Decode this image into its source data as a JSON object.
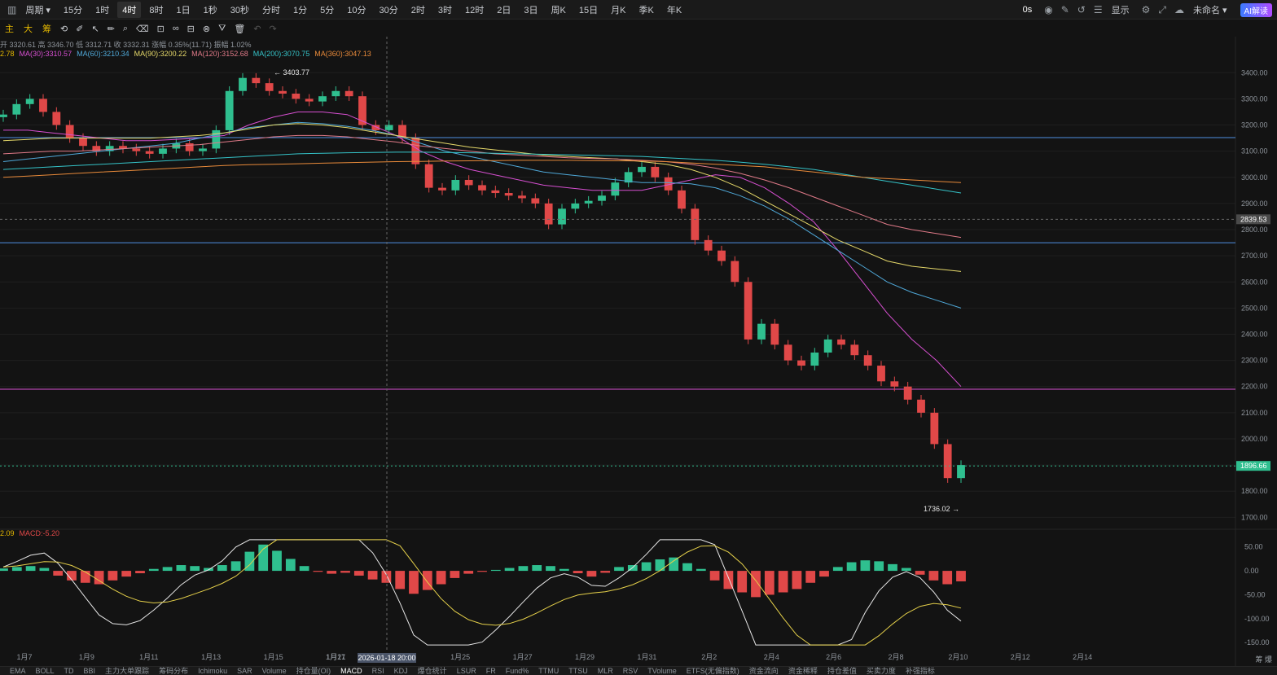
{
  "toolbar": {
    "chart_type_icon": "bar-chart-icon",
    "period_label": "周期",
    "intervals": [
      "15分",
      "1时",
      "4时",
      "8时",
      "1日",
      "1秒",
      "30秒",
      "分时",
      "1分",
      "5分",
      "10分",
      "30分",
      "2时",
      "3时",
      "12时",
      "2日",
      "3日",
      "周K",
      "15日",
      "月K",
      "季K",
      "年K"
    ],
    "active_interval": "4时",
    "right": {
      "latency": "0s",
      "display_label": "显示",
      "layout_name": "未命名",
      "ai_label": "AI解读"
    }
  },
  "drawing_bar": {
    "categories": [
      "主",
      "大",
      "筹"
    ]
  },
  "ohlc": {
    "text": "开 3320.61  高 3346.70  低 3312.71  收 3332.31  涨幅 0.35%(11.71)  振幅 1.02%"
  },
  "ma_legend": [
    {
      "label": "2.78",
      "color": "#e5b800"
    },
    {
      "label": "MA(30):3310.57",
      "color": "#d64fd0"
    },
    {
      "label": "MA(60):3210.34",
      "color": "#4fa8d8"
    },
    {
      "label": "MA(90):3200.22",
      "color": "#e6d96a"
    },
    {
      "label": "MA(120):3152.68",
      "color": "#e07a88"
    },
    {
      "label": "MA(200):3070.75",
      "color": "#35c3c8"
    },
    {
      "label": "MA(360):3047.13",
      "color": "#e88a3a"
    }
  ],
  "macd_legend": [
    {
      "label": "2.09",
      "color": "#e5b800"
    },
    {
      "label": "MACD:-5.20",
      "color": "#e04848"
    }
  ],
  "chart_data": {
    "type": "candlestick",
    "price_axis": {
      "ticks": [
        3400,
        3300,
        3200,
        3100,
        3000,
        2900,
        2800,
        2700,
        2600,
        2500,
        2400,
        2300,
        2200,
        2100,
        2000,
        1900,
        1800,
        1700
      ],
      "range": [
        1670,
        3460
      ]
    },
    "macd_axis": {
      "ticks": [
        "50.00",
        "0.00",
        "-50.00",
        "-100.00",
        "-150.00"
      ],
      "range": [
        -160,
        70
      ]
    },
    "date_labels": [
      "1月7",
      "1月9",
      "1月11",
      "1月13",
      "1月15",
      "1月17",
      "1月21",
      "1月23",
      "1月25",
      "1月27",
      "1月29",
      "1月31",
      "2月2",
      "2月4",
      "2月6",
      "2月8",
      "2月10",
      "2月12",
      "2月14"
    ],
    "crosshair_date": "2026-01-18 20:00",
    "crosshair_price": "2839.53",
    "last_price": "1896.66",
    "high_annotation": "3403.77",
    "low_annotation": "1736.02",
    "horizontal_lines": [
      {
        "price": 3152,
        "color": "#4f8fe0"
      },
      {
        "price": 2750,
        "color": "#4f8fe0"
      },
      {
        "price": 2190,
        "color": "#d64fd0"
      }
    ],
    "close_path": [
      3240,
      3280,
      3300,
      3250,
      3200,
      3150,
      3120,
      3100,
      3120,
      3110,
      3100,
      3090,
      3110,
      3130,
      3100,
      3110,
      3180,
      3330,
      3380,
      3360,
      3330,
      3320,
      3300,
      3290,
      3310,
      3330,
      3310,
      3200,
      3180,
      3200,
      3150,
      3050,
      2960,
      2950,
      2990,
      2970,
      2950,
      2940,
      2930,
      2920,
      2900,
      2820,
      2880,
      2900,
      2910,
      2930,
      2980,
      3020,
      3040,
      3000,
      2950,
      2880,
      2760,
      2720,
      2680,
      2600,
      2380,
      2440,
      2360,
      2300,
      2280,
      2330,
      2380,
      2360,
      2320,
      2280,
      2220,
      2200,
      2150,
      2100,
      1980,
      1850,
      1900
    ],
    "ma_lines": [
      {
        "name": "MA(30)",
        "color": "#d64fd0",
        "values": [
          3180,
          3180,
          3170,
          3160,
          3150,
          3140,
          3140,
          3145,
          3150,
          3160,
          3200,
          3230,
          3250,
          3250,
          3240,
          3200,
          3160,
          3100,
          3060,
          3030,
          3010,
          2990,
          2970,
          2960,
          2950,
          2950,
          2950,
          2970,
          2990,
          3010,
          3000,
          2960,
          2900,
          2830,
          2720,
          2600,
          2480,
          2380,
          2300,
          2200
        ]
      },
      {
        "name": "MA(60)",
        "color": "#4fa8d8",
        "values": [
          3060,
          3070,
          3080,
          3090,
          3100,
          3110,
          3120,
          3130,
          3150,
          3170,
          3190,
          3200,
          3210,
          3205,
          3195,
          3180,
          3160,
          3130,
          3100,
          3080,
          3060,
          3040,
          3020,
          3010,
          3000,
          2990,
          2980,
          2980,
          2975,
          2960,
          2930,
          2890,
          2840,
          2780,
          2720,
          2660,
          2600,
          2560,
          2530,
          2500
        ]
      },
      {
        "name": "MA(90)",
        "color": "#e6d96a",
        "values": [
          3140,
          3145,
          3150,
          3150,
          3150,
          3150,
          3150,
          3155,
          3160,
          3170,
          3185,
          3200,
          3205,
          3200,
          3190,
          3175,
          3160,
          3145,
          3130,
          3115,
          3105,
          3095,
          3085,
          3080,
          3075,
          3070,
          3060,
          3050,
          3030,
          3000,
          2960,
          2910,
          2860,
          2810,
          2760,
          2720,
          2680,
          2660,
          2650,
          2640
        ]
      },
      {
        "name": "MA(120)",
        "color": "#e07a88",
        "values": [
          3090,
          3095,
          3100,
          3100,
          3105,
          3110,
          3115,
          3120,
          3125,
          3135,
          3145,
          3155,
          3160,
          3160,
          3155,
          3145,
          3135,
          3120,
          3110,
          3100,
          3090,
          3085,
          3080,
          3075,
          3072,
          3070,
          3065,
          3060,
          3050,
          3035,
          3015,
          2990,
          2960,
          2925,
          2890,
          2855,
          2820,
          2800,
          2785,
          2770
        ]
      },
      {
        "name": "MA(200)",
        "color": "#35c3c8",
        "values": [
          3030,
          3035,
          3040,
          3045,
          3050,
          3055,
          3060,
          3065,
          3070,
          3075,
          3080,
          3085,
          3090,
          3092,
          3094,
          3095,
          3096,
          3096,
          3095,
          3094,
          3092,
          3090,
          3088,
          3086,
          3084,
          3082,
          3080,
          3075,
          3070,
          3065,
          3058,
          3050,
          3040,
          3030,
          3015,
          3000,
          2985,
          2970,
          2955,
          2940
        ]
      },
      {
        "name": "MA(360)",
        "color": "#e88a3a",
        "values": [
          3000,
          3005,
          3010,
          3015,
          3020,
          3025,
          3030,
          3035,
          3040,
          3045,
          3048,
          3050,
          3052,
          3054,
          3056,
          3058,
          3060,
          3061,
          3062,
          3063,
          3064,
          3065,
          3065,
          3065,
          3064,
          3063,
          3062,
          3060,
          3055,
          3050,
          3045,
          3040,
          3030,
          3020,
          3010,
          3000,
          2995,
          2990,
          2985,
          2980
        ]
      }
    ],
    "macd_hist": [
      5,
      8,
      10,
      6,
      -10,
      -20,
      -25,
      -28,
      -20,
      -12,
      -5,
      4,
      8,
      12,
      10,
      6,
      12,
      20,
      40,
      55,
      42,
      25,
      10,
      -2,
      -6,
      -4,
      -10,
      -18,
      -25,
      -38,
      -48,
      -40,
      -28,
      -15,
      -6,
      -2,
      2,
      6,
      10,
      12,
      10,
      4,
      -5,
      -12,
      -4,
      8,
      12,
      18,
      24,
      28,
      16,
      4,
      -20,
      -38,
      -45,
      -55,
      -50,
      -45,
      -38,
      -25,
      -12,
      8,
      18,
      22,
      20,
      14,
      6,
      -8,
      -20,
      -28,
      -22
    ]
  },
  "bottom_tabs": [
    "",
    "EMA",
    "BOLL",
    "TD",
    "BBI",
    "主力大单跟踪",
    "筹码分布",
    "Ichimoku",
    "SAR",
    "Volume",
    "持仓量(OI)",
    "MACD",
    "RSI",
    "KDJ",
    "爆仓统计",
    "LSUR",
    "FR",
    "Fund%",
    "TTMU",
    "TTSU",
    "MLR",
    "RSV",
    "TVolume",
    "ETFS(无偏指数)",
    "资金流向",
    "资金稀释",
    "持仓差值",
    "买卖力度",
    "补强指标"
  ],
  "bottom_active": "MACD",
  "right_edge": {
    "label": "筹 爆"
  }
}
